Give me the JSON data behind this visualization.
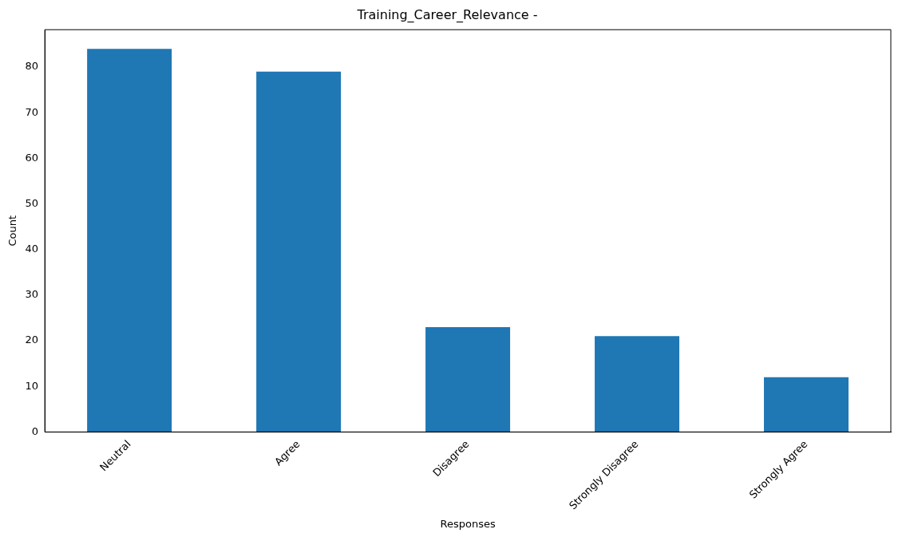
{
  "chart_data": {
    "type": "bar",
    "title": "Training_Career_Relevance -",
    "xlabel": "Responses",
    "ylabel": "Count",
    "categories": [
      "Neutral",
      "Agree",
      "Disagree",
      "Strongly Disagree",
      "Strongly Agree"
    ],
    "values": [
      84,
      79,
      23,
      21,
      12
    ],
    "color": "#1f77b4",
    "ylim": [
      0,
      88.2
    ],
    "yticks": [
      0,
      10,
      20,
      30,
      40,
      50,
      60,
      70,
      80
    ],
    "grid": false,
    "legend": false
  }
}
